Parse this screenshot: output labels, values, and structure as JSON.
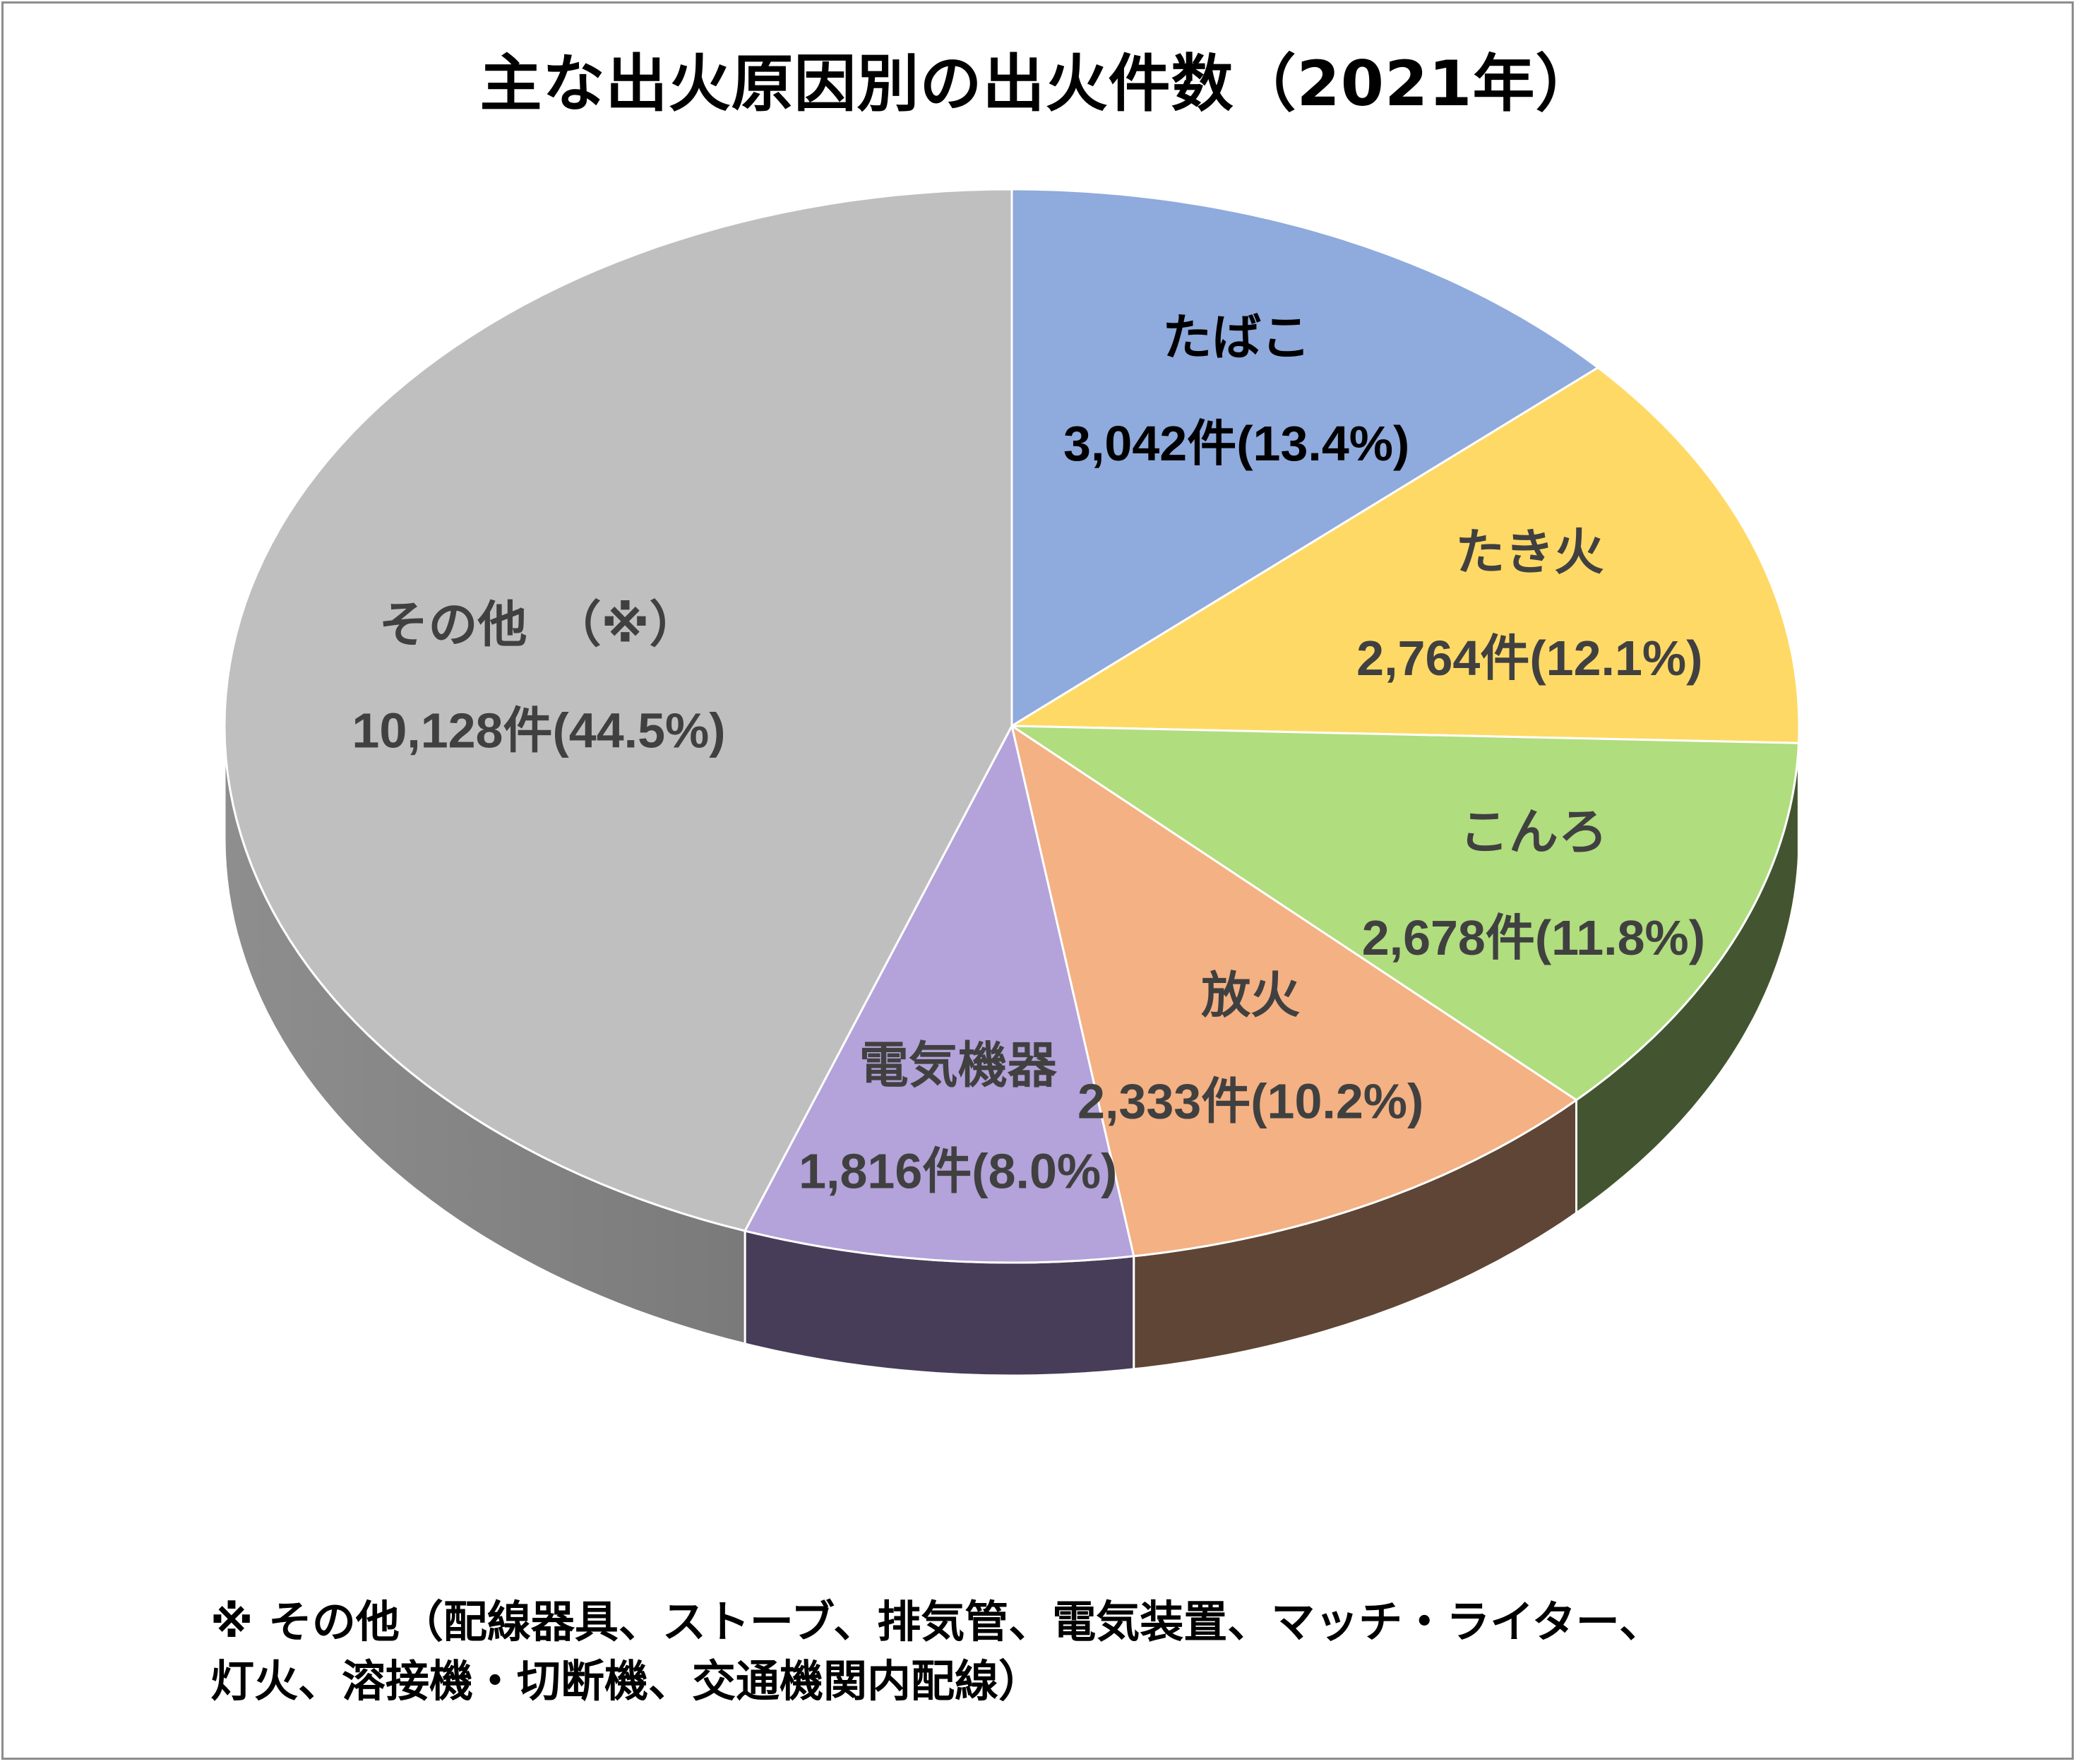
{
  "chart_data": {
    "type": "pie",
    "title": "主な出火原因別の出火件数（2021年）",
    "start_angle_deg": 0,
    "direction": "clockwise",
    "slices": [
      {
        "label": "たばこ",
        "value": 3042,
        "value_text": "3,042件(13.4%)",
        "percent": 13.4,
        "color": "#8FAADC",
        "side_color": "#3D4A5E",
        "label_color": "#000000"
      },
      {
        "label": "たき火",
        "value": 2764,
        "value_text": "2,764件(12.1%)",
        "percent": 12.1,
        "color": "#FFD966",
        "side_color": "#6B5A2A",
        "label_color": "#404040"
      },
      {
        "label": "こんろ",
        "value": 2678,
        "value_text": "2,678件(11.8%)",
        "percent": 11.8,
        "color": "#B0DD7E",
        "side_color": "#435530",
        "label_color": "#404040"
      },
      {
        "label": "放火",
        "value": 2333,
        "value_text": "2,333件(10.2%)",
        "percent": 10.2,
        "color": "#F4B183",
        "side_color": "#5E4535",
        "label_color": "#404040"
      },
      {
        "label": "電気機器",
        "value": 1816,
        "value_text": "1,816件(8.0%)",
        "percent": 8.0,
        "color": "#B4A2DA",
        "side_color": "#473D58",
        "label_color": "#404040"
      },
      {
        "label": "その他　（※）",
        "value": 10128,
        "value_text": "10,128件(44.5%)",
        "percent": 44.5,
        "color": "#BFBFBF",
        "side_color": "#7A7A7A",
        "label_color": "#404040"
      }
    ]
  },
  "footnote": {
    "line1": "※ その他（配線器具、ストーブ、排気管、電気装置、マッチ・ライター、",
    "line2": "灯火、溶接機・切断機、交通機関内配線）"
  }
}
